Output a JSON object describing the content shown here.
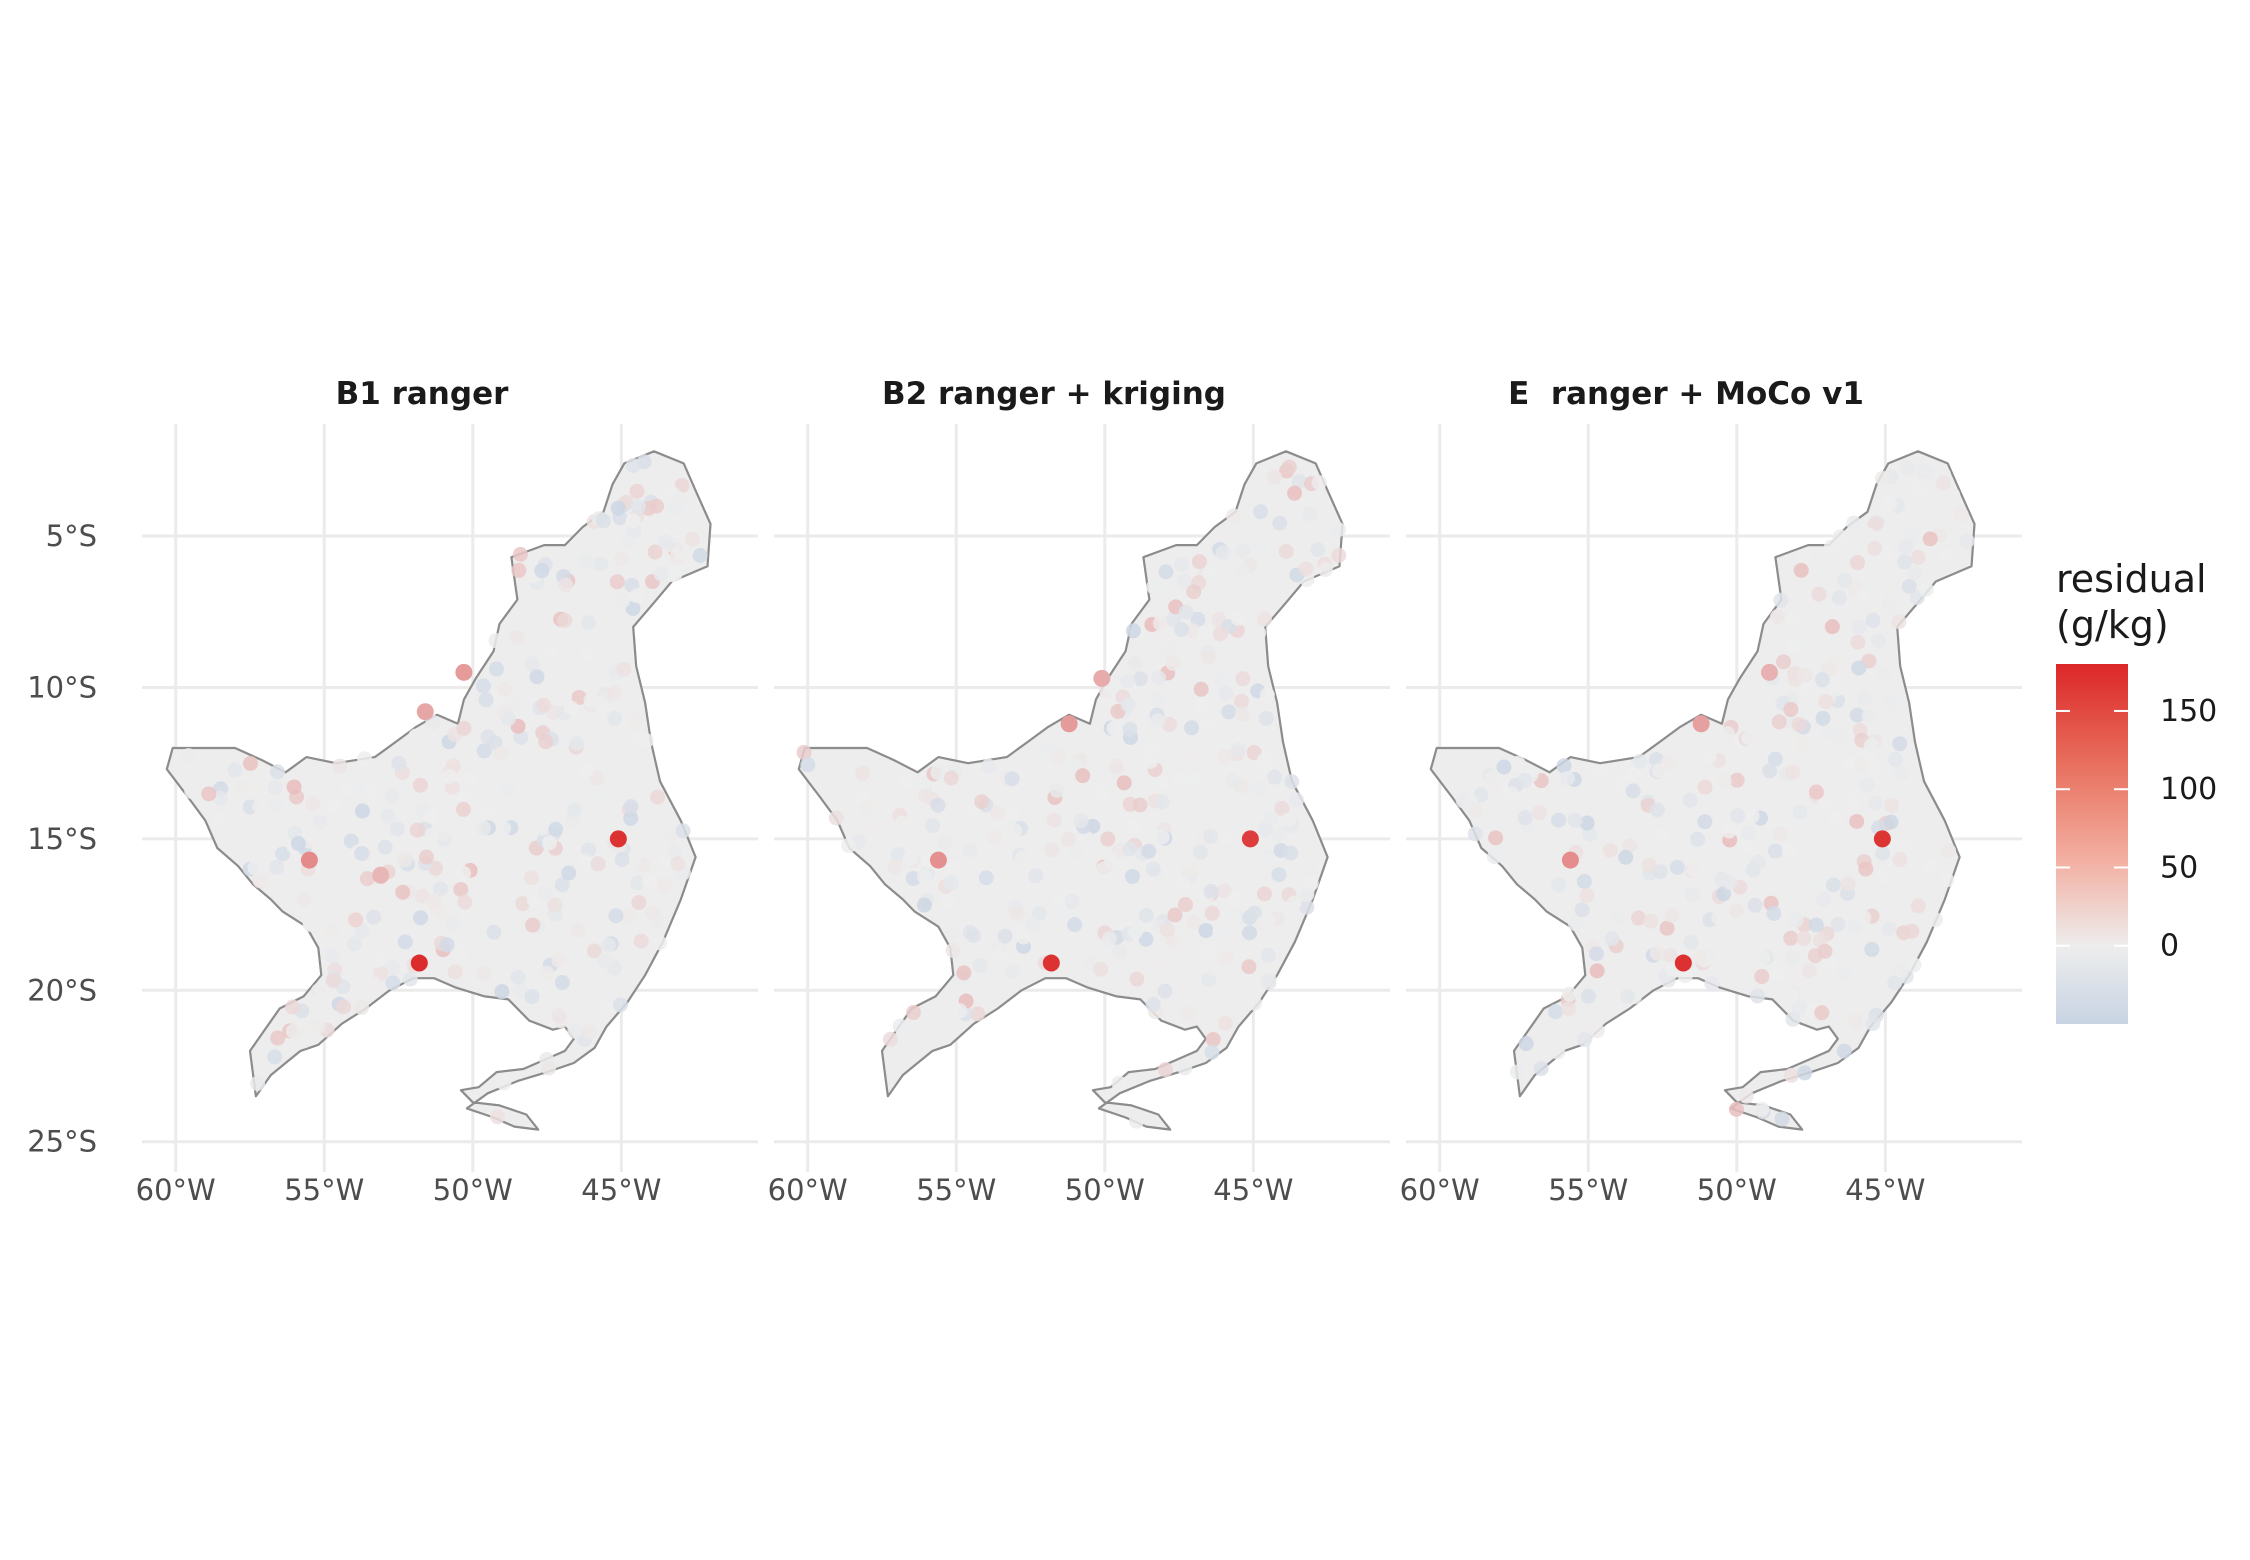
{
  "figure": {
    "panels": [
      {
        "id": "b1",
        "title": "B1 ranger"
      },
      {
        "id": "b2",
        "title": "B2 ranger + kriging"
      },
      {
        "id": "e",
        "title": "E  ranger + MoCo v1"
      }
    ],
    "axes": {
      "lon_ticks": [
        -60,
        -55,
        -50,
        -45
      ],
      "lon_tick_labels": [
        "60°W",
        "55°W",
        "50°W",
        "45°W"
      ],
      "lat_ticks": [
        -5,
        -10,
        -15,
        -20,
        -25
      ],
      "lat_tick_labels": [
        "5°S",
        "10°S",
        "15°S",
        "20°S",
        "25°S"
      ],
      "lon_range": [
        -61,
        -40.4
      ],
      "lat_range": [
        -26,
        -1.3
      ],
      "grid": true
    },
    "legend": {
      "title_line1": "residual",
      "title_line2": "(g/kg)",
      "ticks": [
        150,
        100,
        50,
        0
      ],
      "tick_labels": [
        "150",
        "100",
        "50",
        "0"
      ],
      "range": [
        -50,
        180
      ],
      "colors": {
        "low": "#c8d3e3",
        "mid": "#ededed",
        "high": "#dc2727"
      },
      "placement": "right"
    },
    "colors": {
      "region_fill": "#ededed",
      "region_outline": "#8c8c8c",
      "grid": "#ebebeb"
    }
  },
  "chart_data": {
    "type": "scatter",
    "description_of_encoding": "points in lon/lat degrees; color = residual (g/kg)",
    "region_outline_lonlat": [
      [
        -57.3,
        -23.5
      ],
      [
        -56.8,
        -22.8
      ],
      [
        -56.3,
        -22.4
      ],
      [
        -55.8,
        -22.0
      ],
      [
        -55.2,
        -21.8
      ],
      [
        -54.4,
        -21.1
      ],
      [
        -53.6,
        -20.6
      ],
      [
        -52.8,
        -20.0
      ],
      [
        -52.0,
        -19.6
      ],
      [
        -51.3,
        -19.6
      ],
      [
        -50.6,
        -19.9
      ],
      [
        -49.6,
        -20.2
      ],
      [
        -48.8,
        -20.3
      ],
      [
        -48.1,
        -21.0
      ],
      [
        -47.3,
        -21.3
      ],
      [
        -46.9,
        -21.2
      ],
      [
        -46.6,
        -21.6
      ],
      [
        -46.9,
        -22.0
      ],
      [
        -47.6,
        -22.3
      ],
      [
        -48.3,
        -22.6
      ],
      [
        -49.2,
        -22.7
      ],
      [
        -49.8,
        -23.2
      ],
      [
        -50.4,
        -23.3
      ],
      [
        -50.0,
        -23.7
      ],
      [
        -49.1,
        -23.8
      ],
      [
        -48.2,
        -24.1
      ],
      [
        -47.8,
        -24.6
      ],
      [
        -48.6,
        -24.5
      ],
      [
        -49.3,
        -24.2
      ],
      [
        -50.2,
        -23.9
      ],
      [
        -49.5,
        -23.4
      ],
      [
        -48.5,
        -23.0
      ],
      [
        -47.5,
        -22.7
      ],
      [
        -46.6,
        -22.4
      ],
      [
        -45.9,
        -21.9
      ],
      [
        -45.5,
        -21.2
      ],
      [
        -44.8,
        -20.4
      ],
      [
        -44.2,
        -19.5
      ],
      [
        -43.6,
        -18.4
      ],
      [
        -43.0,
        -17.0
      ],
      [
        -42.5,
        -15.6
      ],
      [
        -43.0,
        -14.4
      ],
      [
        -43.7,
        -13.1
      ],
      [
        -44.0,
        -11.8
      ],
      [
        -44.2,
        -10.5
      ],
      [
        -44.5,
        -9.3
      ],
      [
        -44.6,
        -8.0
      ],
      [
        -43.9,
        -7.2
      ],
      [
        -43.3,
        -6.5
      ],
      [
        -42.1,
        -6.0
      ],
      [
        -42.0,
        -4.6
      ],
      [
        -42.5,
        -3.5
      ],
      [
        -42.9,
        -2.6
      ],
      [
        -43.9,
        -2.2
      ],
      [
        -44.9,
        -2.6
      ],
      [
        -45.3,
        -3.3
      ],
      [
        -45.6,
        -4.2
      ],
      [
        -46.3,
        -4.7
      ],
      [
        -46.9,
        -5.3
      ],
      [
        -47.6,
        -5.3
      ],
      [
        -48.7,
        -5.7
      ],
      [
        -48.5,
        -7.1
      ],
      [
        -49.1,
        -7.9
      ],
      [
        -49.3,
        -8.8
      ],
      [
        -49.9,
        -9.7
      ],
      [
        -50.3,
        -10.4
      ],
      [
        -50.5,
        -11.2
      ],
      [
        -51.2,
        -10.9
      ],
      [
        -51.9,
        -11.3
      ],
      [
        -52.6,
        -11.8
      ],
      [
        -53.3,
        -12.3
      ],
      [
        -54.6,
        -12.5
      ],
      [
        -55.6,
        -12.3
      ],
      [
        -56.3,
        -12.8
      ],
      [
        -57.1,
        -12.4
      ],
      [
        -58.0,
        -12.0
      ],
      [
        -59.2,
        -12.0
      ],
      [
        -60.1,
        -12.0
      ],
      [
        -60.3,
        -12.7
      ],
      [
        -59.6,
        -13.6
      ],
      [
        -59.0,
        -14.4
      ],
      [
        -58.6,
        -15.3
      ],
      [
        -57.9,
        -15.9
      ],
      [
        -57.4,
        -16.5
      ],
      [
        -56.8,
        -17.0
      ],
      [
        -56.4,
        -17.4
      ],
      [
        -55.6,
        -17.9
      ],
      [
        -55.2,
        -18.6
      ],
      [
        -55.1,
        -19.5
      ],
      [
        -55.7,
        -20.2
      ],
      [
        -56.5,
        -20.6
      ],
      [
        -57.0,
        -21.3
      ],
      [
        -57.5,
        -22.0
      ],
      [
        -57.3,
        -23.5
      ]
    ],
    "highlights": [
      {
        "panel": "b1",
        "points": [
          {
            "lon": -51.8,
            "lat": -19.1,
            "residual": 175
          },
          {
            "lon": -45.1,
            "lat": -15.0,
            "residual": 170
          },
          {
            "lon": -55.5,
            "lat": -15.7,
            "residual": 90
          },
          {
            "lon": -50.3,
            "lat": -9.5,
            "residual": 75
          },
          {
            "lon": -51.6,
            "lat": -10.8,
            "residual": 65
          },
          {
            "lon": -53.1,
            "lat": -16.2,
            "residual": 50
          }
        ]
      },
      {
        "panel": "b2",
        "points": [
          {
            "lon": -51.8,
            "lat": -19.1,
            "residual": 170
          },
          {
            "lon": -45.1,
            "lat": -15.0,
            "residual": 160
          },
          {
            "lon": -55.6,
            "lat": -15.7,
            "residual": 85
          },
          {
            "lon": -51.2,
            "lat": -11.2,
            "residual": 75
          },
          {
            "lon": -50.1,
            "lat": -9.7,
            "residual": 60
          }
        ]
      },
      {
        "panel": "e",
        "points": [
          {
            "lon": -51.8,
            "lat": -19.1,
            "residual": 172
          },
          {
            "lon": -45.1,
            "lat": -15.0,
            "residual": 168
          },
          {
            "lon": -55.6,
            "lat": -15.7,
            "residual": 88
          },
          {
            "lon": -51.2,
            "lat": -11.2,
            "residual": 70
          },
          {
            "lon": -48.9,
            "lat": -9.5,
            "residual": 55
          }
        ]
      }
    ]
  }
}
